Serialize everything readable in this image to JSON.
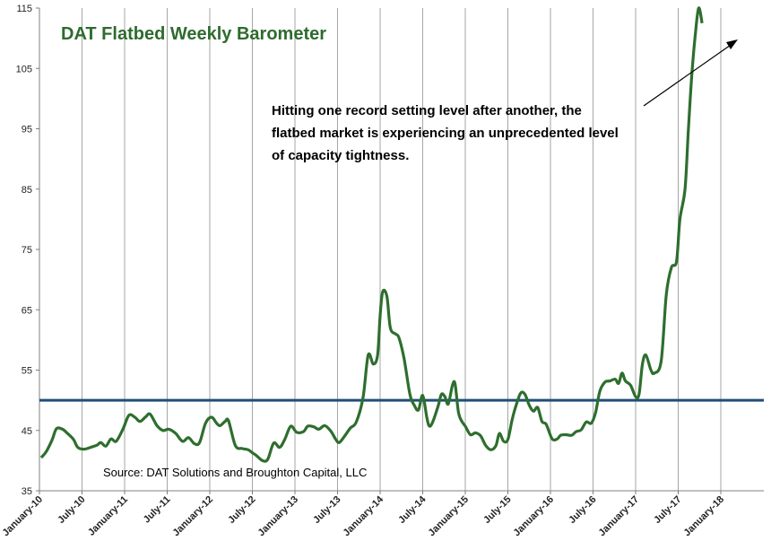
{
  "chart_data": {
    "type": "line",
    "title": "DAT Flatbed Weekly Barometer",
    "annotation": [
      "Hitting one record setting level after another, the",
      "flatbed market is experiencing an unprecedented level",
      "of capacity tightness."
    ],
    "source": "Source: DAT Solutions and Broughton Capital, LLC",
    "ylim": [
      35,
      115
    ],
    "yticks": [
      35,
      45,
      55,
      65,
      75,
      85,
      95,
      105,
      115
    ],
    "xlim": [
      0,
      8.3
    ],
    "xticks": [
      {
        "x": 0,
        "label": "January-10"
      },
      {
        "x": 0.5,
        "label": "July-10"
      },
      {
        "x": 1,
        "label": "January-11"
      },
      {
        "x": 1.5,
        "label": "July-11"
      },
      {
        "x": 2,
        "label": "January-12"
      },
      {
        "x": 2.5,
        "label": "July-12"
      },
      {
        "x": 3,
        "label": "January-13"
      },
      {
        "x": 3.5,
        "label": "July-13"
      },
      {
        "x": 4,
        "label": "January-14"
      },
      {
        "x": 4.5,
        "label": "July-14"
      },
      {
        "x": 5,
        "label": "January-15"
      },
      {
        "x": 5.5,
        "label": "July-15"
      },
      {
        "x": 6,
        "label": "January-16"
      },
      {
        "x": 6.5,
        "label": "July-16"
      },
      {
        "x": 7,
        "label": "January-17"
      },
      {
        "x": 7.5,
        "label": "July-17"
      },
      {
        "x": 8,
        "label": "January-18"
      }
    ],
    "grid": "vertical",
    "reference_line": 50,
    "colors": {
      "series": "#2e6e2e",
      "reference": "#1f4e79",
      "title": "#2e6b2e",
      "grid": "#a6a6a6"
    },
    "series": [
      {
        "points": [
          [
            0.02,
            40.5
          ],
          [
            0.08,
            41.5
          ],
          [
            0.15,
            43.5
          ],
          [
            0.2,
            45.3
          ],
          [
            0.27,
            45.2
          ],
          [
            0.33,
            44.5
          ],
          [
            0.4,
            43.5
          ],
          [
            0.45,
            42.2
          ],
          [
            0.52,
            41.9
          ],
          [
            0.6,
            42.2
          ],
          [
            0.68,
            42.6
          ],
          [
            0.72,
            43.0
          ],
          [
            0.78,
            42.4
          ],
          [
            0.84,
            43.6
          ],
          [
            0.9,
            43.2
          ],
          [
            0.98,
            45.2
          ],
          [
            1.05,
            47.5
          ],
          [
            1.12,
            47.2
          ],
          [
            1.18,
            46.5
          ],
          [
            1.25,
            47.3
          ],
          [
            1.3,
            47.7
          ],
          [
            1.38,
            45.8
          ],
          [
            1.45,
            45.0
          ],
          [
            1.52,
            45.2
          ],
          [
            1.6,
            44.5
          ],
          [
            1.68,
            43.2
          ],
          [
            1.75,
            43.8
          ],
          [
            1.82,
            42.8
          ],
          [
            1.88,
            43.0
          ],
          [
            1.95,
            46.2
          ],
          [
            2.02,
            47.2
          ],
          [
            2.08,
            46.2
          ],
          [
            2.12,
            45.8
          ],
          [
            2.18,
            46.5
          ],
          [
            2.22,
            46.6
          ],
          [
            2.3,
            42.5
          ],
          [
            2.38,
            42.0
          ],
          [
            2.45,
            41.8
          ],
          [
            2.5,
            41.3
          ],
          [
            2.55,
            40.8
          ],
          [
            2.62,
            40.0
          ],
          [
            2.68,
            40.2
          ],
          [
            2.75,
            42.9
          ],
          [
            2.82,
            42.2
          ],
          [
            2.88,
            43.5
          ],
          [
            2.95,
            45.7
          ],
          [
            3.02,
            44.7
          ],
          [
            3.1,
            44.8
          ],
          [
            3.15,
            45.7
          ],
          [
            3.22,
            45.6
          ],
          [
            3.28,
            45.2
          ],
          [
            3.35,
            45.8
          ],
          [
            3.42,
            44.9
          ],
          [
            3.48,
            43.5
          ],
          [
            3.52,
            43.0
          ],
          [
            3.58,
            44.0
          ],
          [
            3.65,
            45.4
          ],
          [
            3.72,
            46.4
          ],
          [
            3.8,
            50.5
          ],
          [
            3.86,
            57.5
          ],
          [
            3.92,
            56.0
          ],
          [
            3.97,
            57.5
          ],
          [
            4.0,
            64.0
          ],
          [
            4.03,
            68.0
          ],
          [
            4.08,
            67.2
          ],
          [
            4.12,
            62.0
          ],
          [
            4.18,
            61.0
          ],
          [
            4.22,
            60.4
          ],
          [
            4.28,
            57.0
          ],
          [
            4.35,
            51.0
          ],
          [
            4.4,
            49.2
          ],
          [
            4.45,
            48.4
          ],
          [
            4.5,
            50.8
          ],
          [
            4.55,
            47.0
          ],
          [
            4.58,
            45.7
          ],
          [
            4.62,
            46.5
          ],
          [
            4.68,
            49.0
          ],
          [
            4.72,
            51.0
          ],
          [
            4.76,
            50.6
          ],
          [
            4.8,
            49.4
          ],
          [
            4.85,
            52.5
          ],
          [
            4.88,
            52.7
          ],
          [
            4.92,
            48.0
          ],
          [
            4.96,
            46.5
          ],
          [
            5.0,
            45.7
          ],
          [
            5.06,
            44.3
          ],
          [
            5.12,
            44.6
          ],
          [
            5.18,
            44.1
          ],
          [
            5.24,
            42.5
          ],
          [
            5.3,
            41.8
          ],
          [
            5.36,
            42.5
          ],
          [
            5.4,
            44.5
          ],
          [
            5.45,
            43.2
          ],
          [
            5.5,
            43.5
          ],
          [
            5.55,
            46.8
          ],
          [
            5.6,
            49.3
          ],
          [
            5.65,
            51.2
          ],
          [
            5.7,
            51.0
          ],
          [
            5.75,
            49.2
          ],
          [
            5.8,
            48.2
          ],
          [
            5.85,
            48.8
          ],
          [
            5.9,
            46.5
          ],
          [
            5.95,
            46.0
          ],
          [
            6.02,
            43.6
          ],
          [
            6.08,
            43.6
          ],
          [
            6.12,
            44.2
          ],
          [
            6.18,
            44.3
          ],
          [
            6.25,
            44.2
          ],
          [
            6.3,
            44.8
          ],
          [
            6.36,
            45.1
          ],
          [
            6.42,
            46.4
          ],
          [
            6.48,
            46.2
          ],
          [
            6.53,
            48.0
          ],
          [
            6.58,
            51.5
          ],
          [
            6.64,
            53.0
          ],
          [
            6.7,
            53.2
          ],
          [
            6.76,
            53.5
          ],
          [
            6.8,
            52.8
          ],
          [
            6.84,
            54.5
          ],
          [
            6.88,
            53.2
          ],
          [
            6.94,
            52.5
          ],
          [
            7.0,
            50.6
          ],
          [
            7.04,
            51.0
          ],
          [
            7.08,
            56.0
          ],
          [
            7.12,
            57.5
          ],
          [
            7.18,
            55.0
          ],
          [
            7.22,
            54.5
          ],
          [
            7.3,
            56.5
          ],
          [
            7.36,
            67.5
          ],
          [
            7.42,
            72.0
          ],
          [
            7.48,
            73.0
          ],
          [
            7.52,
            80.0
          ],
          [
            7.58,
            85.0
          ],
          [
            7.62,
            95.0
          ],
          [
            7.66,
            104.0
          ],
          [
            7.7,
            110.5
          ],
          [
            7.74,
            115.0
          ],
          [
            7.78,
            112.5
          ]
        ]
      }
    ]
  }
}
